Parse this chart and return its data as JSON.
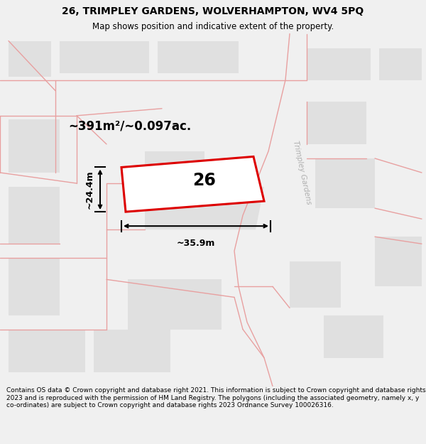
{
  "title": "26, TRIMPLEY GARDENS, WOLVERHAMPTON, WV4 5PQ",
  "subtitle": "Map shows position and indicative extent of the property.",
  "footer": "Contains OS data © Crown copyright and database right 2021. This information is subject to Crown copyright and database rights 2023 and is reproduced with the permission of HM Land Registry. The polygons (including the associated geometry, namely x, y co-ordinates) are subject to Crown copyright and database rights 2023 Ordnance Survey 100026316.",
  "bg_color": "#f0f0f0",
  "map_bg": "#f0f0f0",
  "plot_color": "#dd0000",
  "plot_fill": "#ffffff",
  "plot_label": "26",
  "area_text": "~391m²/~0.097ac.",
  "dim_width": "~35.9m",
  "dim_height": "~24.4m",
  "road_label": "Trimpley Gardens",
  "line_color": "#e8a0a0",
  "block_color": "#e0e0e0",
  "title_fontsize": 10,
  "subtitle_fontsize": 8.5,
  "footer_fontsize": 6.5
}
